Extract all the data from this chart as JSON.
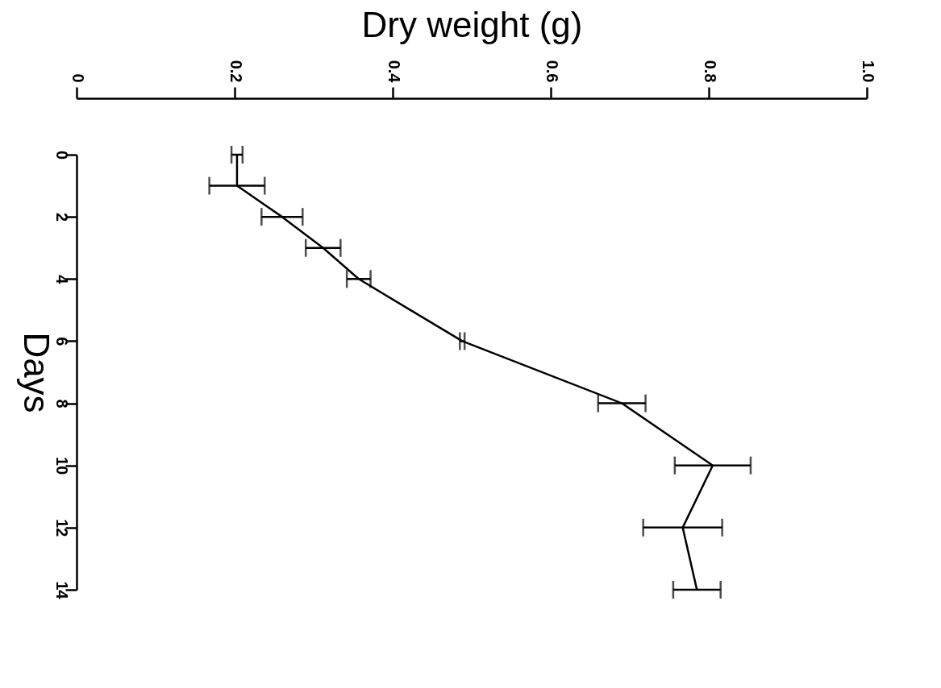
{
  "chart_data": {
    "type": "line",
    "orientation": "horizontal",
    "xlabel": "Dry weight (g)",
    "ylabel": "Days",
    "x": [
      0,
      1,
      2,
      3,
      4,
      6,
      8,
      10,
      12,
      14
    ],
    "values": [
      0.203,
      0.203,
      0.26,
      0.312,
      0.357,
      0.488,
      0.69,
      0.805,
      0.767,
      0.785
    ],
    "errors": [
      0.007,
      0.035,
      0.026,
      0.022,
      0.015,
      0.003,
      0.03,
      0.048,
      0.05,
      0.03
    ],
    "color": "#000000",
    "marker": "none",
    "line_style": "solid",
    "grid": false,
    "xlim": [
      0,
      1
    ],
    "xticks": [
      0,
      0.2,
      0.4,
      0.6,
      0.8,
      {
        "value": 1,
        "label": "1.0"
      }
    ],
    "ylim": [
      14,
      0
    ],
    "yticks": [
      0,
      2,
      4,
      6,
      8,
      10,
      12,
      14
    ]
  }
}
